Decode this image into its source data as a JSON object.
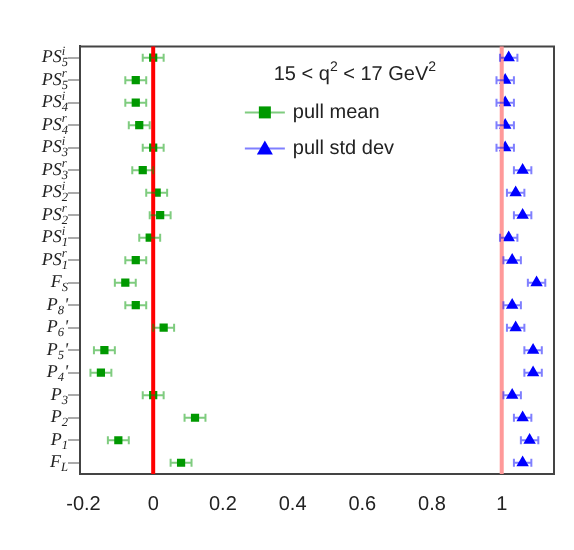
{
  "chart_data": {
    "type": "scatter",
    "orientation": "horizontal",
    "annotations": [
      "15 < q$^{2}$ < 17 GeV$^{2}$"
    ],
    "categories": [
      "PS$^{i}$$_{5}$",
      "PS$^{r}$$_{5}$",
      "PS$^{i}$$_{4}$",
      "PS$^{r}$$_{4}$",
      "PS$^{i}$$_{3}$",
      "PS$^{r}$$_{3}$",
      "PS$^{i}$$_{2}$",
      "PS$^{r}$$_{2}$",
      "PS$^{i}$$_{1}$",
      "PS$^{r}$$_{1}$",
      "F$_{S}$",
      "P$_{8}$'",
      "P$_{6}$'",
      "P$_{5}$'",
      "P$_{4}$'",
      "P$_{3}$",
      "P$_{2}$",
      "P$_{1}$",
      "F$_{L}$"
    ],
    "series": [
      {
        "name": "pull mean",
        "color": "#009900",
        "marker": "square",
        "values": [
          0.0,
          -0.05,
          -0.05,
          -0.04,
          0.0,
          -0.03,
          0.01,
          0.02,
          -0.01,
          -0.05,
          -0.08,
          -0.05,
          0.03,
          -0.14,
          -0.15,
          0.0,
          0.12,
          -0.1,
          0.08
        ],
        "errors": [
          0.03,
          0.03,
          0.03,
          0.03,
          0.03,
          0.03,
          0.03,
          0.03,
          0.03,
          0.03,
          0.03,
          0.03,
          0.03,
          0.03,
          0.03,
          0.03,
          0.03,
          0.03,
          0.03
        ]
      },
      {
        "name": "pull std dev",
        "color": "#0000ff",
        "marker": "triangle",
        "values": [
          1.02,
          1.01,
          1.01,
          1.01,
          1.01,
          1.06,
          1.04,
          1.06,
          1.02,
          1.03,
          1.1,
          1.03,
          1.04,
          1.09,
          1.09,
          1.03,
          1.06,
          1.08,
          1.06
        ],
        "errors": [
          0.025,
          0.025,
          0.025,
          0.025,
          0.025,
          0.025,
          0.025,
          0.025,
          0.025,
          0.025,
          0.025,
          0.025,
          0.025,
          0.025,
          0.025,
          0.025,
          0.025,
          0.025,
          0.025
        ]
      }
    ],
    "xlim": [
      -0.21,
      1.15
    ],
    "xticks": [
      -0.2,
      0,
      0.2,
      0.4,
      0.6,
      0.8,
      1
    ],
    "ref_lines": [
      {
        "axis": "x",
        "value": 0,
        "color": "#ff0000"
      },
      {
        "axis": "x",
        "value": 1,
        "color": "#ff9999"
      }
    ],
    "legend": "top right",
    "grid": false
  }
}
